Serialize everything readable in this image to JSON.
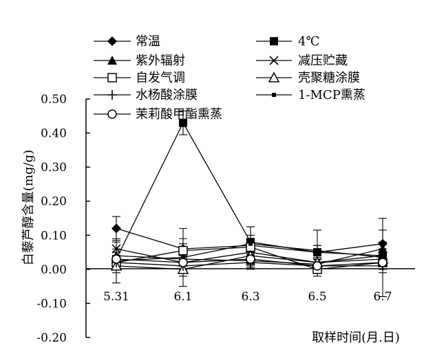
{
  "chart_data": {
    "type": "line",
    "xlabel": "取样时间(月.日)",
    "ylabel": "白藜芦醇含量(mg/g)",
    "categories": [
      "5.31",
      "6.1",
      "6.3",
      "6.5",
      "6.7"
    ],
    "yticks": [
      "0.50",
      "0.40",
      "0.30",
      "0.20",
      "0.10",
      "0.00",
      "-0.10",
      "-0.20"
    ],
    "ylim": [
      -0.2,
      0.5
    ],
    "grid": false,
    "legend_position": "top",
    "series": [
      {
        "name": "常温",
        "marker": "diamond-filled",
        "values": [
          0.12,
          0.06,
          0.07,
          0.05,
          0.075
        ],
        "errors": [
          0.035,
          0.03,
          0.02,
          0.02,
          0.04
        ]
      },
      {
        "name": "4℃",
        "marker": "square-filled",
        "values": [
          0.03,
          0.43,
          0.08,
          0.05,
          0.04
        ],
        "errors": [
          0.02,
          0.035,
          0.02,
          0.02,
          0.02
        ]
      },
      {
        "name": "紫外辐射",
        "marker": "triangle-filled",
        "values": [
          0.04,
          0.03,
          0.025,
          0.015,
          0.06
        ],
        "errors": [
          0.02,
          0.03,
          0.02,
          0.02,
          0.02
        ]
      },
      {
        "name": "减压贮藏",
        "marker": "x",
        "values": [
          0.06,
          0.02,
          0.05,
          0.02,
          0.04
        ],
        "errors": [
          0.02,
          0.02,
          0.02,
          0.02,
          0.02
        ]
      },
      {
        "name": "自发气调",
        "marker": "square-open",
        "values": [
          0.02,
          0.055,
          0.065,
          0.0,
          0.02
        ],
        "errors": [
          0.02,
          0.02,
          0.02,
          0.02,
          0.02
        ]
      },
      {
        "name": "壳聚糖涂膜",
        "marker": "triangle-open",
        "values": [
          0.01,
          0.0,
          0.04,
          0.02,
          0.03
        ],
        "errors": [
          0.02,
          0.02,
          0.02,
          0.02,
          0.02
        ]
      },
      {
        "name": "水杨酸涂膜",
        "marker": "plus",
        "values": [
          0.02,
          0.01,
          0.02,
          0.01,
          0.01
        ],
        "errors": [
          0.02,
          0.02,
          0.02,
          0.02,
          0.02
        ]
      },
      {
        "name": "1-MCP熏蒸",
        "marker": "dash-square",
        "values": [
          0.025,
          0.035,
          0.075,
          0.055,
          0.035
        ],
        "errors": [
          0.065,
          0.085,
          0.05,
          0.06,
          0.115
        ]
      },
      {
        "name": "茉莉酸甲酯熏蒸",
        "marker": "circle-open",
        "values": [
          0.03,
          0.02,
          0.03,
          0.01,
          0.02
        ],
        "errors": [
          0.02,
          0.02,
          0.02,
          0.02,
          0.02
        ]
      }
    ]
  }
}
